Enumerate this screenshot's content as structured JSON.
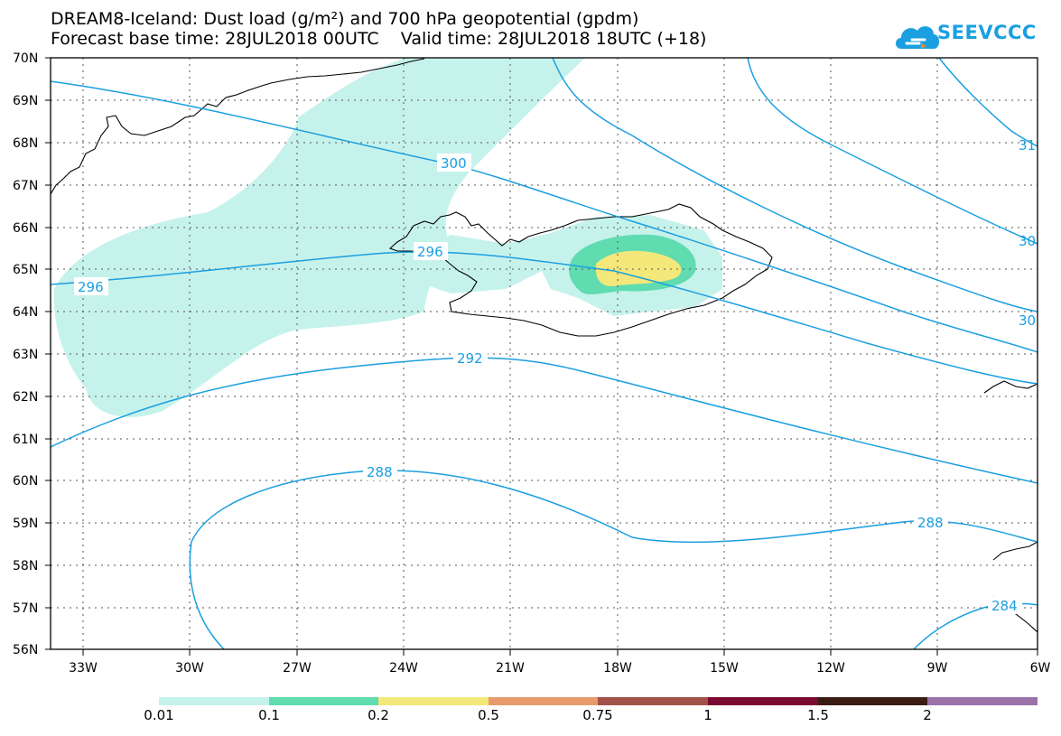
{
  "title": {
    "line1": "DREAM8-Iceland: Dust load (g/m²) and 700 hPa geopotential (gpdm)",
    "line2": "Forecast base time: 28JUL2018 00UTC    Valid time: 28JUL2018 18UTC (+18)"
  },
  "logo": {
    "text": "SEEVCCC",
    "icon": "cloud-icon",
    "color": "#1a9fe0"
  },
  "axes": {
    "lat_labels": [
      "70N",
      "69N",
      "68N",
      "67N",
      "66N",
      "65N",
      "64N",
      "63N",
      "62N",
      "61N",
      "60N",
      "59N",
      "58N",
      "57N",
      "56N"
    ],
    "lon_labels": [
      "33W",
      "30W",
      "27W",
      "24W",
      "21W",
      "18W",
      "15W",
      "12W",
      "9W",
      "6W"
    ]
  },
  "contours": {
    "color": "#1a9fe0",
    "labels": [
      "300",
      "296",
      "296",
      "292",
      "288",
      "288",
      "284",
      "30",
      "30",
      "31"
    ]
  },
  "colorbar": {
    "labels": [
      "0.01",
      "0.1",
      "0.2",
      "0.5",
      "0.75",
      "1",
      "1.5",
      "2"
    ],
    "colors": [
      "#c6f2ec",
      "#5fdcb0",
      "#f4e87a",
      "#e89a6c",
      "#a3524a",
      "#7a0a30",
      "#3a1c12",
      "#9a72a8"
    ]
  },
  "dust_colors": {
    "low": "#c6f2ec",
    "mid": "#5fdcb0",
    "high": "#f4e87a"
  }
}
